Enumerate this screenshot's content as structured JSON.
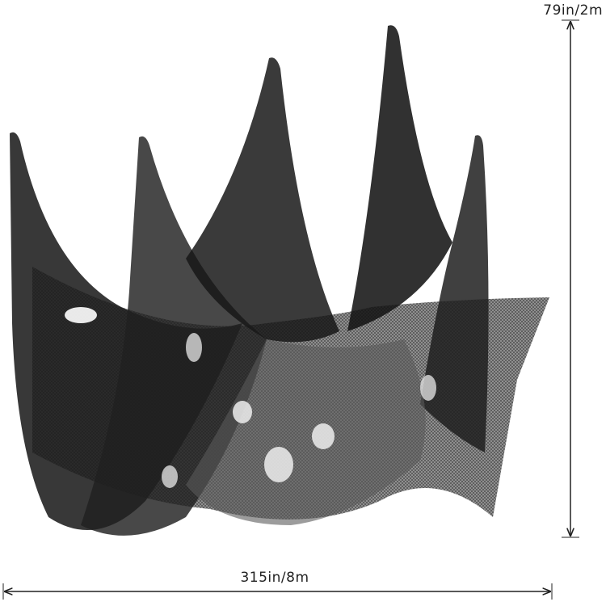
{
  "dimensions": {
    "height": "79in/2m",
    "width": "315in/8m"
  }
}
